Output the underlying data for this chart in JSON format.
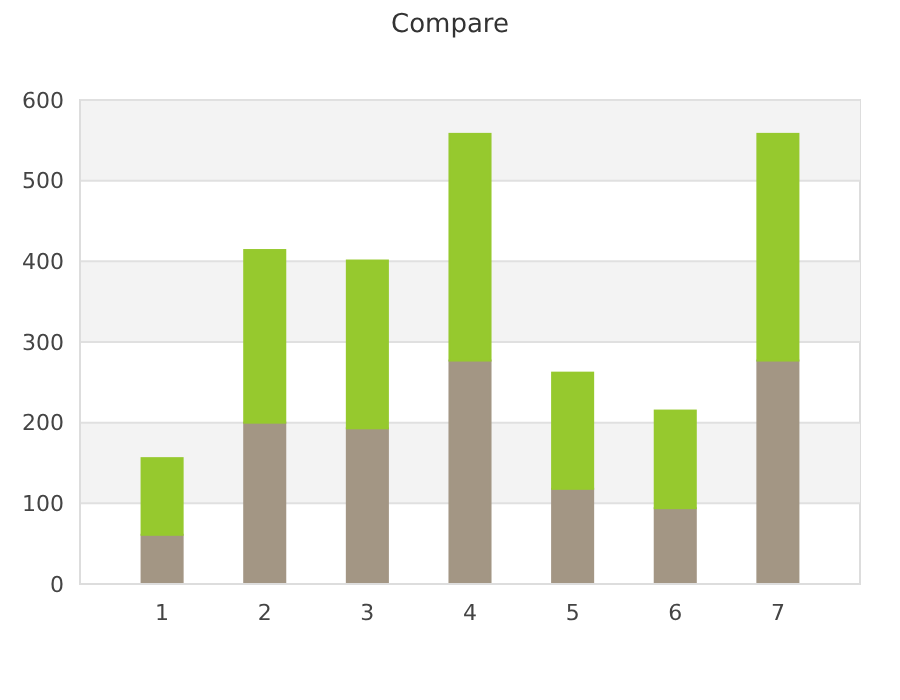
{
  "chart_data": {
    "type": "bar",
    "title": "Compare",
    "categories": [
      "1",
      "2",
      "3",
      "4",
      "5",
      "6",
      "7"
    ],
    "stacked": true,
    "series": [
      {
        "color": "#a39684",
        "values": [
          61,
          200,
          193,
          277,
          118,
          94,
          277
        ]
      },
      {
        "color": "#96c92e",
        "values": [
          95,
          214,
          208,
          281,
          144,
          121,
          281
        ]
      }
    ],
    "ylim": [
      0,
      600
    ],
    "yticks": [
      0,
      100,
      200,
      300,
      400,
      500,
      600
    ],
    "grid": "y"
  }
}
